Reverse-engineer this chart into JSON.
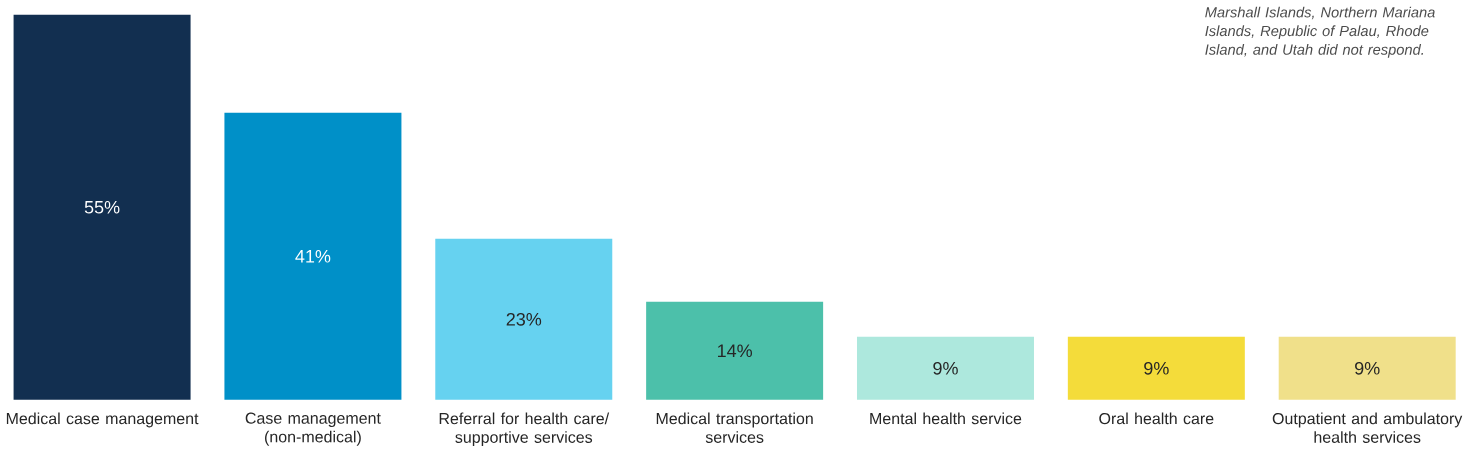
{
  "chart_data": {
    "type": "bar",
    "categories": [
      "Medical case management",
      "Case management (non-medical)",
      "Referral for health care/ supportive services",
      "Medical transportation services",
      "Mental health service",
      "Oral health care",
      "Outpatient and ambulatory health services"
    ],
    "values": [
      55,
      41,
      23,
      14,
      9,
      9,
      9
    ],
    "value_labels": [
      "55%",
      "41%",
      "23%",
      "14%",
      "9%",
      "9%",
      "9%"
    ],
    "colors": [
      "#122f50",
      "#0090c8",
      "#66d2f0",
      "#4cc0aa",
      "#ade8dd",
      "#f4dc3a",
      "#f0e08a"
    ],
    "annotations": [
      "Marshall Islands, Northern Mariana Islands, Republic of Palau, Rhode Island, and Utah did not respond."
    ]
  }
}
